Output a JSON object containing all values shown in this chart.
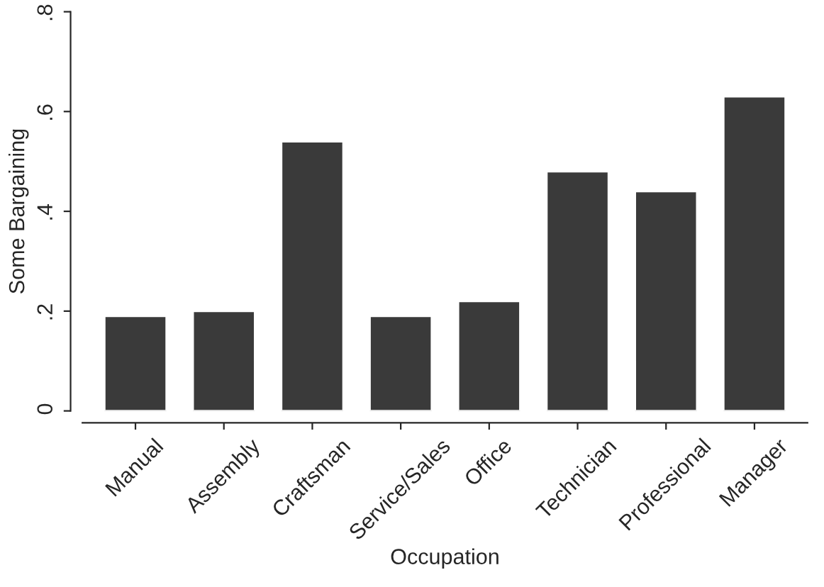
{
  "chart_data": {
    "type": "bar",
    "xlabel": "Occupation",
    "ylabel": "Some Bargaining",
    "categories": [
      "Manual",
      "Assembly",
      "Craftsman",
      "Service/Sales",
      "Office",
      "Technician",
      "Professional",
      "Manager"
    ],
    "values": [
      0.19,
      0.2,
      0.54,
      0.19,
      0.22,
      0.48,
      0.44,
      0.63
    ],
    "color": "#3a3a3a",
    "ylim": [
      0,
      0.8
    ],
    "yticks": [
      0,
      {
        "value": 0.2,
        "label": ".2"
      },
      {
        "value": 0.4,
        "label": ".4"
      },
      {
        "value": 0.6,
        "label": ".6"
      },
      {
        "value": 0.8,
        "label": ".8"
      }
    ],
    "grid": false,
    "legend": false
  }
}
